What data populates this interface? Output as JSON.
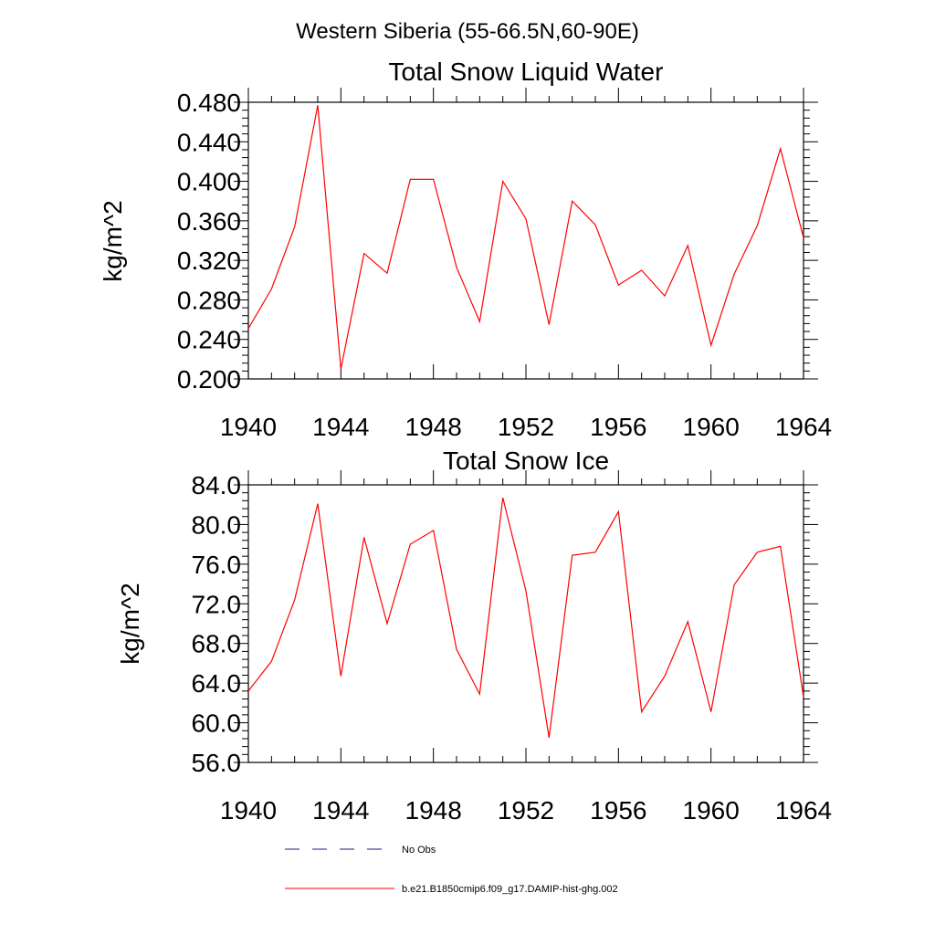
{
  "figure": {
    "suptitle": "Western Siberia (55-66.5N,60-90E)"
  },
  "legend": {
    "entries": [
      {
        "label": "No Obs",
        "color": "#1a1a8c",
        "style": "dashed"
      },
      {
        "label": "b.e21.B1850cmip6.f09_g17.DAMIP-hist-ghg.002",
        "color": "#ff0000",
        "style": "solid"
      }
    ]
  },
  "chart_data": [
    {
      "type": "line",
      "title": "Total Snow Liquid Water",
      "xlabel": "",
      "ylabel": "kg/m^2",
      "xlim": [
        1940,
        1964
      ],
      "ylim": [
        0.2,
        0.48
      ],
      "x_ticks": [
        "1940",
        "1944",
        "1948",
        "1952",
        "1956",
        "1960",
        "1964"
      ],
      "y_ticks": [
        "0.200",
        "0.240",
        "0.280",
        "0.320",
        "0.360",
        "0.400",
        "0.440",
        "0.480"
      ],
      "grid": false,
      "x": [
        1940,
        1941,
        1942,
        1943,
        1944,
        1945,
        1946,
        1947,
        1948,
        1949,
        1950,
        1951,
        1952,
        1953,
        1954,
        1955,
        1956,
        1957,
        1958,
        1959,
        1960,
        1961,
        1962,
        1963,
        1964
      ],
      "series": [
        {
          "name": "b.e21.B1850cmip6.f09_g17.DAMIP-hist-ghg.002",
          "color": "#ff0000",
          "values": [
            0.251,
            0.291,
            0.354,
            0.477,
            0.21,
            0.327,
            0.307,
            0.402,
            0.402,
            0.313,
            0.258,
            0.4,
            0.362,
            0.255,
            0.38,
            0.356,
            0.295,
            0.31,
            0.284,
            0.335,
            0.234,
            0.306,
            0.355,
            0.433,
            0.343
          ]
        }
      ]
    },
    {
      "type": "line",
      "title": "Total Snow Ice",
      "xlabel": "",
      "ylabel": "kg/m^2",
      "xlim": [
        1940,
        1964
      ],
      "ylim": [
        56,
        84
      ],
      "x_ticks": [
        "1940",
        "1944",
        "1948",
        "1952",
        "1956",
        "1960",
        "1964"
      ],
      "y_ticks": [
        "56.0",
        "60.0",
        "64.0",
        "68.0",
        "72.0",
        "76.0",
        "80.0",
        "84.0"
      ],
      "grid": false,
      "x": [
        1940,
        1941,
        1942,
        1943,
        1944,
        1945,
        1946,
        1947,
        1948,
        1949,
        1950,
        1951,
        1952,
        1953,
        1954,
        1955,
        1956,
        1957,
        1958,
        1959,
        1960,
        1961,
        1962,
        1963,
        1964
      ],
      "series": [
        {
          "name": "b.e21.B1850cmip6.f09_g17.DAMIP-hist-ghg.002",
          "color": "#ff0000",
          "values": [
            63.2,
            66.2,
            72.4,
            82.1,
            64.7,
            78.7,
            70.0,
            78.0,
            79.4,
            67.4,
            62.9,
            82.7,
            73.3,
            58.5,
            76.9,
            77.2,
            81.3,
            61.1,
            64.7,
            70.2,
            61.1,
            73.9,
            77.2,
            77.8,
            62.6
          ]
        }
      ]
    }
  ]
}
